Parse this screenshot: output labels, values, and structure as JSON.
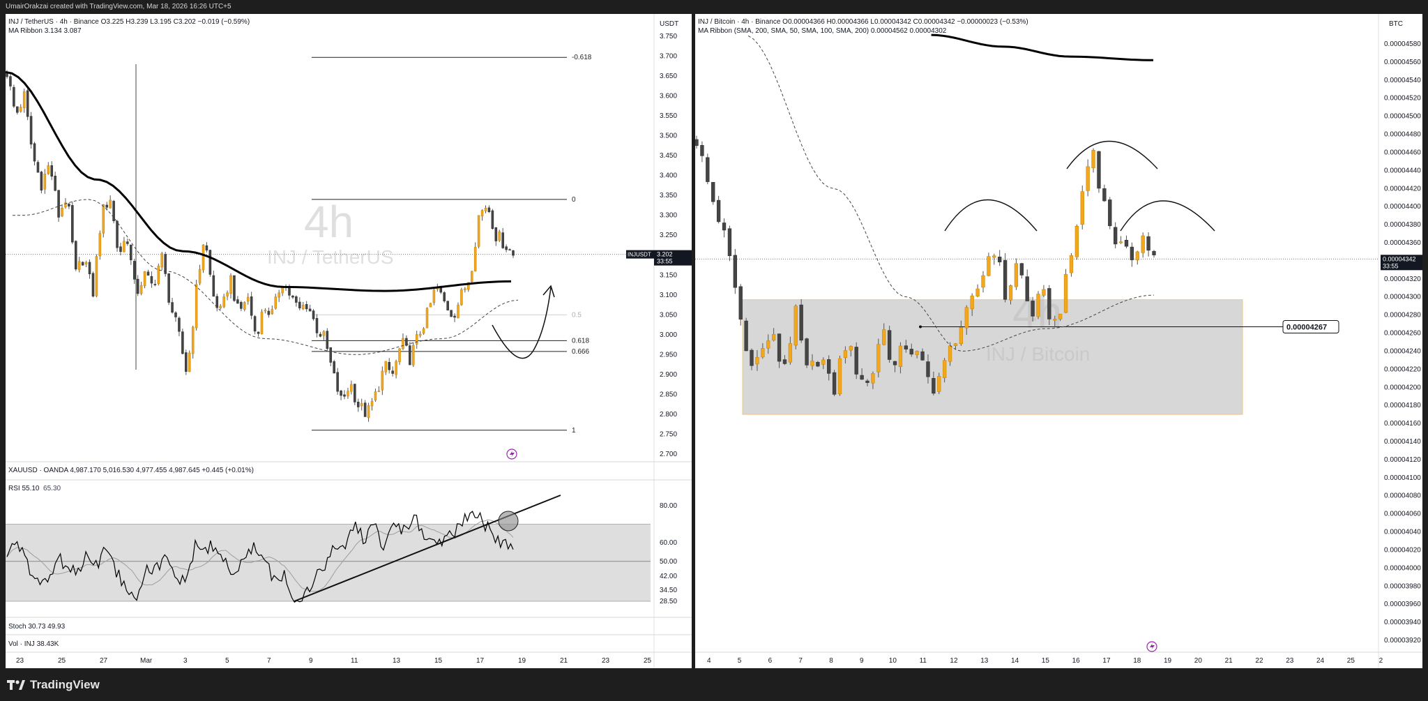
{
  "header": {
    "attribution": "UmairOrakzai created with TradingView.com, Mar 18, 2026 16:26 UTC+5"
  },
  "footer": {
    "brand": "TradingView"
  },
  "colors": {
    "bull": "#f2a71d",
    "bear": "#454545",
    "ma_thick": "#000000",
    "ma_dash": "#444444",
    "box_fill": "#d3d3d3",
    "box_border": "#f2c58a",
    "rsi_line": "#000000",
    "rsi_ma": "#9e9e9e",
    "alert_icon": "#9c27b0"
  },
  "left_panel": {
    "legend_main": "INJ / TetherUS · 4h · Binance  O3.225  H3.239  L3.195  C3.202  −0.019 (−0.59%)",
    "legend_ma": "MA Ribbon  3.134  3.087",
    "currency": "USDT",
    "watermark_interval": "4h",
    "watermark_symbol": "INJ / TetherUS",
    "price_tag_symbol": "INJUSDT",
    "price_tag_value": "3.202",
    "price_tag_timer": "33:55",
    "xauusd_legend": "XAUUSD · OANDA  4,987.170  5,016.530  4,977.455  4,987.645  +0.445 (+0.01%)",
    "rsi_legend": "RSI  55.10",
    "rsi_legend_ma": "65.30",
    "stoch_legend": "Stoch  30.73  49.93",
    "vol_legend": "Vol · INJ  38.43K",
    "alert_icon": "lightning-icon"
  },
  "right_panel": {
    "legend_main": "INJ / Bitcoin · 4h · Binance  O0.00004366  H0.00004366  L0.00004342  C0.00004342  −0.00000023 (−0.53%)",
    "legend_ma": "MA Ribbon (SMA, 200, SMA, 50, SMA, 100, SMA, 200)  0.00004562  0.00004302",
    "currency": "BTC",
    "watermark_interval": "4h",
    "watermark_symbol": "INJ / Bitcoin",
    "price_tag_value": "0.00004342",
    "price_tag_timer": "33:55",
    "horizontal_label": "0.00004267",
    "alert_icon": "lightning-icon"
  },
  "chart_data": [
    {
      "type": "candlestick",
      "symbol": "INJ / TetherUS",
      "interval": "4h",
      "exchange": "Binance",
      "x_ticks": [
        "23",
        "25",
        "27",
        "Mar",
        "3",
        "5",
        "7",
        "9",
        "11",
        "13",
        "15",
        "17",
        "19",
        "21",
        "23",
        "25"
      ],
      "y_ticks": [
        "3.750",
        "3.700",
        "3.650",
        "3.600",
        "3.550",
        "3.500",
        "3.450",
        "3.400",
        "3.350",
        "3.300",
        "3.250",
        "3.200",
        "3.150",
        "3.100",
        "3.050",
        "3.000",
        "2.950",
        "2.900",
        "2.850",
        "2.800",
        "2.750",
        "2.700"
      ],
      "ylim": [
        2.7,
        3.75
      ],
      "fib_levels": [
        {
          "label": "-0.618",
          "value": 3.697
        },
        {
          "label": "0",
          "value": 3.34
        },
        {
          "label": "0.5",
          "value": 3.05
        },
        {
          "label": "0.618",
          "value": 2.985
        },
        {
          "label": "0.666",
          "value": 2.958
        },
        {
          "label": "1",
          "value": 2.76
        }
      ],
      "ohlc_path": [
        3.66,
        3.55,
        3.6,
        3.45,
        3.38,
        3.43,
        3.3,
        3.35,
        3.15,
        3.2,
        3.1,
        3.3,
        3.35,
        3.2,
        3.25,
        3.1,
        3.15,
        3.12,
        3.2,
        3.08,
        3.0,
        2.9,
        3.1,
        3.25,
        3.1,
        3.05,
        3.15,
        3.05,
        3.1,
        3.0,
        3.07,
        3.05,
        3.14,
        3.1,
        3.06,
        3.08,
        3.02,
        2.99,
        2.9,
        2.83,
        2.88,
        2.82,
        2.8,
        2.85,
        2.92,
        2.9,
        2.98,
        2.94,
        3.0,
        3.05,
        3.12,
        3.08,
        3.05,
        3.1,
        3.15,
        3.3,
        3.33,
        3.25,
        3.23,
        3.2
      ],
      "ohlc_x_range": [
        "2026-02-22",
        "2026-03-18"
      ],
      "ma_200": [
        [
          0,
          3.66
        ],
        [
          0.18,
          3.39
        ],
        [
          0.35,
          3.21
        ],
        [
          0.55,
          3.12
        ],
        [
          0.75,
          3.11
        ],
        [
          1.0,
          3.134
        ]
      ],
      "ma_50": [
        [
          0.02,
          3.3
        ],
        [
          0.15,
          3.34
        ],
        [
          0.3,
          3.16
        ],
        [
          0.5,
          2.99
        ],
        [
          0.68,
          2.95
        ],
        [
          0.85,
          2.99
        ],
        [
          1.0,
          3.087
        ]
      ],
      "last_price": 3.202,
      "rsi": {
        "value": 55.1,
        "ma": 65.3,
        "y_ticks": [
          "80.00",
          "60.00",
          "50.00",
          "42.00",
          "34.50",
          "28.50"
        ],
        "band": [
          28.5,
          70
        ]
      }
    },
    {
      "type": "candlestick",
      "symbol": "INJ / Bitcoin",
      "interval": "4h",
      "exchange": "Binance",
      "x_ticks": [
        "4",
        "5",
        "6",
        "7",
        "8",
        "9",
        "10",
        "11",
        "12",
        "13",
        "14",
        "15",
        "16",
        "17",
        "18",
        "19",
        "20",
        "21",
        "22",
        "23",
        "24",
        "25",
        "2"
      ],
      "y_ticks": [
        "0.00004580",
        "0.00004560",
        "0.00004540",
        "0.00004520",
        "0.00004500",
        "0.00004480",
        "0.00004460",
        "0.00004440",
        "0.00004420",
        "0.00004400",
        "0.00004380",
        "0.00004360",
        "0.00004340",
        "0.00004320",
        "0.00004300",
        "0.00004280",
        "0.00004260",
        "0.00004240",
        "0.00004220",
        "0.00004200",
        "0.00004180",
        "0.00004160",
        "0.00004140",
        "0.00004120",
        "0.00004100",
        "0.00004080",
        "0.00004060",
        "0.00004040",
        "0.00004020",
        "0.00004000",
        "0.00003980",
        "0.00003960",
        "0.00003940",
        "0.00003920"
      ],
      "ylim": [
        3.91e-05,
        4.59e-05
      ],
      "range_box": [
        4.17e-05,
        4.297e-05
      ],
      "horizontal_level": 4.267e-05,
      "ohlc_path": [
        4.475e-05,
        4.42e-05,
        4.38e-05,
        4.32e-05,
        4.24e-05,
        4.23e-05,
        4.26e-05,
        4.22e-05,
        4.28e-05,
        4.21e-05,
        4.24e-05,
        4.19e-05,
        4.25e-05,
        4.22e-05,
        4.2e-05,
        4.27e-05,
        4.22e-05,
        4.25e-05,
        4.23e-05,
        4.2e-05,
        4.22e-05,
        4.26e-05,
        4.28e-05,
        4.32e-05,
        4.36e-05,
        4.3e-05,
        4.34e-05,
        4.28e-05,
        4.3e-05,
        4.27e-05,
        4.32e-05,
        4.4e-05,
        4.47e-05,
        4.4e-05,
        4.36e-05,
        4.34e-05,
        4.37e-05,
        4.342e-05
      ],
      "ohlc_x_range": [
        "2026-03-04",
        "2026-03-18"
      ],
      "ma_200": [
        [
          0.33,
          4.59e-05
        ],
        [
          0.55,
          4.577e-05
        ],
        [
          0.75,
          4.566e-05
        ],
        [
          1.0,
          4.562e-05
        ]
      ],
      "ma_50": [
        [
          0.04,
          4.59e-05
        ],
        [
          0.25,
          4.42e-05
        ],
        [
          0.42,
          4.3e-05
        ],
        [
          0.55,
          4.24e-05
        ],
        [
          0.75,
          4.265e-05
        ],
        [
          1.0,
          4.302e-05
        ]
      ],
      "last_price": 4.342e-05
    }
  ]
}
